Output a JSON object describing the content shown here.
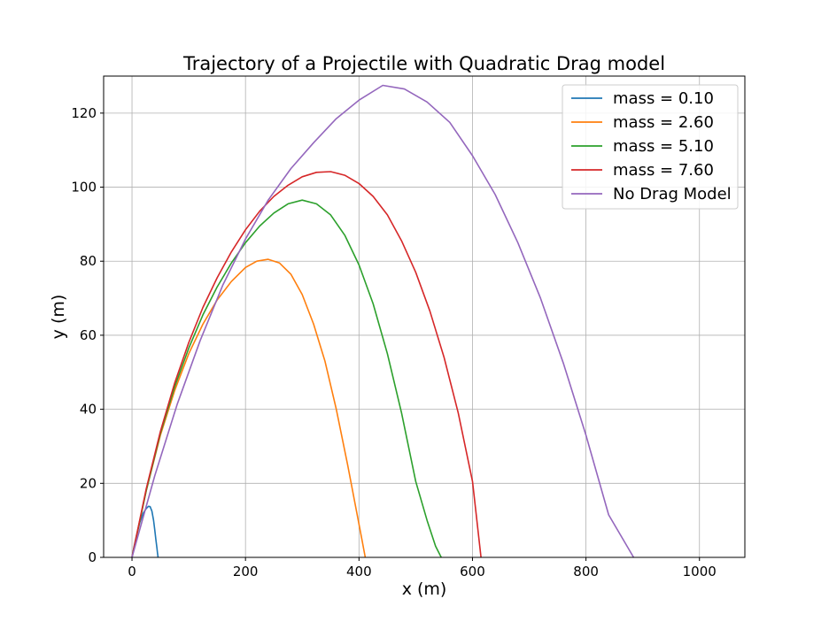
{
  "chart_data": {
    "type": "line",
    "title": "Trajectory of a Projectile with Quadratic Drag model",
    "xlabel": "x (m)",
    "ylabel": "y (m)",
    "xlim": [
      -50,
      1080
    ],
    "ylim": [
      0,
      130
    ],
    "xticks": [
      0,
      200,
      400,
      600,
      800,
      1000
    ],
    "yticks": [
      0,
      20,
      40,
      60,
      80,
      100,
      120
    ],
    "grid": true,
    "legend_position": "top-right",
    "series": [
      {
        "name": "mass = 0.10",
        "color": "#1f77b4",
        "x": [
          0,
          3,
          8,
          14,
          20,
          25,
          29,
          32,
          35,
          38,
          40,
          42,
          44,
          45,
          46
        ],
        "y": [
          0,
          2.5,
          6,
          9.5,
          12,
          13.2,
          13.8,
          13.7,
          12.5,
          10,
          7.5,
          5,
          2.5,
          1,
          0
        ]
      },
      {
        "name": "mass = 2.60",
        "color": "#ff7f0e",
        "x": [
          0,
          25,
          50,
          75,
          100,
          125,
          150,
          175,
          200,
          220,
          240,
          260,
          280,
          300,
          320,
          340,
          360,
          380,
          395,
          405,
          411
        ],
        "y": [
          0,
          18,
          33,
          45,
          55,
          63,
          69.5,
          74.5,
          78.3,
          80,
          80.5,
          79.5,
          76.5,
          71,
          63,
          53,
          40,
          25,
          13,
          5,
          0
        ]
      },
      {
        "name": "mass = 5.10",
        "color": "#2ca02c",
        "x": [
          0,
          25,
          50,
          75,
          100,
          125,
          150,
          175,
          200,
          225,
          250,
          275,
          300,
          325,
          350,
          375,
          400,
          425,
          450,
          475,
          500,
          520,
          535,
          545
        ],
        "y": [
          0,
          18,
          33.5,
          46,
          56.5,
          65.5,
          73,
          79.5,
          85,
          89.5,
          93,
          95.5,
          96.5,
          95.5,
          92.5,
          87,
          79,
          68.5,
          55,
          39,
          20.5,
          10,
          3,
          0
        ]
      },
      {
        "name": "mass = 7.60",
        "color": "#d62728",
        "x": [
          0,
          25,
          50,
          75,
          100,
          125,
          150,
          175,
          200,
          225,
          250,
          275,
          300,
          325,
          350,
          375,
          400,
          425,
          450,
          475,
          500,
          525,
          550,
          575,
          600,
          615
        ],
        "y": [
          0,
          18.5,
          34,
          47,
          58,
          67.5,
          75.5,
          82.5,
          88.5,
          93.5,
          97.5,
          100.5,
          102.8,
          104,
          104.2,
          103.2,
          101,
          97.5,
          92.5,
          85.5,
          77,
          66.5,
          54,
          39,
          20.5,
          0
        ]
      },
      {
        "name": "No Drag Model",
        "color": "#9467bd",
        "x": [
          0,
          40,
          80,
          120,
          160,
          200,
          240,
          280,
          320,
          360,
          400,
          442,
          480,
          520,
          560,
          600,
          640,
          680,
          720,
          760,
          800,
          840,
          884
        ],
        "y": [
          0,
          22,
          41.5,
          58.5,
          73.5,
          86,
          96.5,
          105,
          112,
          118.5,
          123.5,
          127.5,
          126.5,
          123,
          117.5,
          108.5,
          98,
          85,
          70,
          52.5,
          33,
          11.5,
          0
        ]
      }
    ]
  }
}
